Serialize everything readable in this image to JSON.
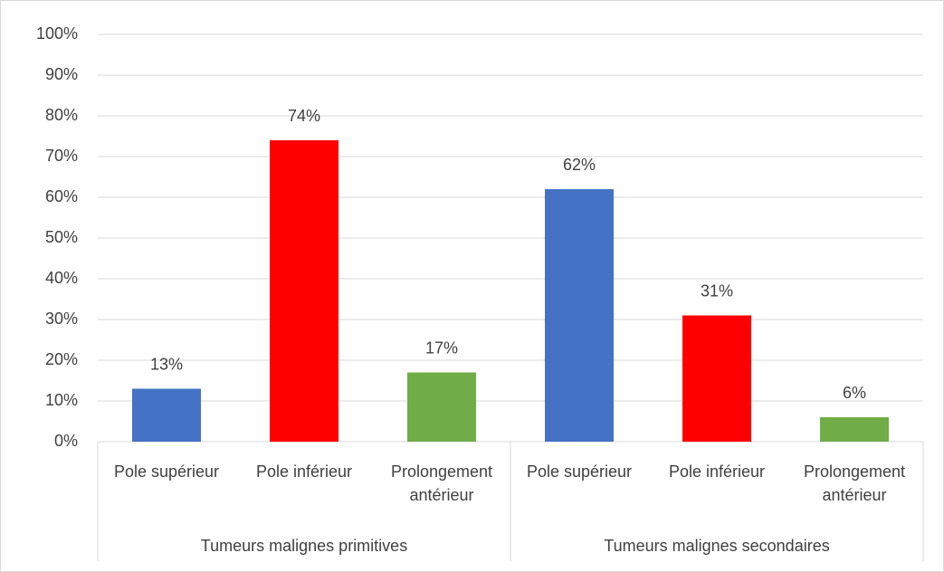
{
  "chart_data": {
    "type": "bar",
    "categories": [
      "Pole supérieur",
      "Pole inférieur",
      "Prolongement antérieur",
      "Pole supérieur",
      "Pole inférieur",
      "Prolongement antérieur"
    ],
    "groups": [
      "Tumeurs malignes primitives",
      "Tumeurs malignes secondaires"
    ],
    "values": [
      13,
      74,
      17,
      62,
      31,
      6
    ],
    "value_labels": [
      "13%",
      "74%",
      "17%",
      "62%",
      "31%",
      "6%"
    ],
    "colors": [
      "#4472c4",
      "#ff0000",
      "#70ad47",
      "#4472c4",
      "#ff0000",
      "#70ad47"
    ],
    "ylim": [
      0,
      100
    ],
    "yticks": [
      {
        "value": 0,
        "label": "0%"
      },
      {
        "value": 10,
        "label": "10%"
      },
      {
        "value": 20,
        "label": "20%"
      },
      {
        "value": 30,
        "label": "30%"
      },
      {
        "value": 40,
        "label": "40%"
      },
      {
        "value": 50,
        "label": "50%"
      },
      {
        "value": 60,
        "label": "60%"
      },
      {
        "value": 70,
        "label": "70%"
      },
      {
        "value": 80,
        "label": "80%"
      },
      {
        "value": 90,
        "label": "90%"
      },
      {
        "value": 100,
        "label": "100%"
      }
    ],
    "grid": true
  }
}
